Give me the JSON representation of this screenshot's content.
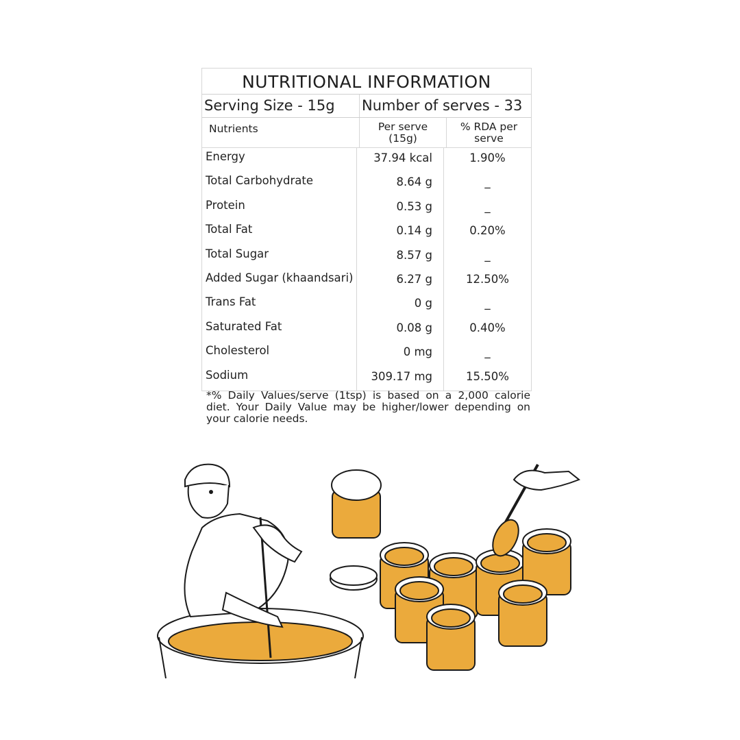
{
  "title": "NUTRITIONAL INFORMATION",
  "serving_size": "Serving Size - 15g",
  "number_of_serves": "Number of serves - 33",
  "headers": {
    "nutrients": "Nutrients",
    "per_serve": "Per serve\n(15g)",
    "rda": "% RDA per\nserve"
  },
  "rows": [
    {
      "name": "Energy",
      "per_serve": "37.94 kcal",
      "rda": "1.90%"
    },
    {
      "name": "Total Carbohydrate",
      "per_serve": "8.64 g",
      "rda": "_"
    },
    {
      "name": "Protein",
      "per_serve": "0.53 g",
      "rda": "_"
    },
    {
      "name": "Total Fat",
      "per_serve": "0.14 g",
      "rda": "0.20%"
    },
    {
      "name": "Total Sugar",
      "per_serve": "8.57 g",
      "rda": "_"
    },
    {
      "name": "Added Sugar (khaandsari)",
      "per_serve": "6.27 g",
      "rda": "12.50%"
    },
    {
      "name": "Trans Fat",
      "per_serve": "0 g",
      "rda": "_"
    },
    {
      "name": "Saturated Fat",
      "per_serve": "0.08 g",
      "rda": "0.40%"
    },
    {
      "name": "Cholesterol",
      "per_serve": "0 mg",
      "rda": "_"
    },
    {
      "name": "Sodium",
      "per_serve": "309.17 mg",
      "rda": "15.50%"
    }
  ],
  "footnote": "*% Daily Values/serve (1tsp) is based on a 2,000 calorie diet. Your Daily Value may be higher/lower depending on your calorie needs.",
  "illustration": {
    "fill_color": "#EBAA3C",
    "line_color": "#1a1a1a"
  }
}
